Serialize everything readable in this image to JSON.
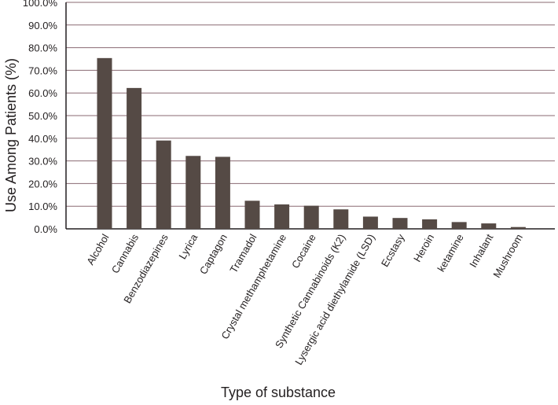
{
  "chart_data": {
    "type": "bar",
    "title": "",
    "xlabel": "Type of substance",
    "ylabel": "Use Among Patients (%)",
    "ylim": [
      0,
      100
    ],
    "yticks": [
      "0.0%",
      "10.0%",
      "20.0%",
      "30.0%",
      "40.0%",
      "50.0%",
      "60.0%",
      "70.0%",
      "80.0%",
      "90.0%",
      "100.0%"
    ],
    "grid": true,
    "colors": {
      "bar": "#554a45",
      "grid": "#8a6a72",
      "axis": "#231f20"
    },
    "categories": [
      "Alcohol",
      "Cannabis",
      "Benzodiazepines",
      "Lyrica",
      "Captagon",
      "Tramadol",
      "Crystal methamphetamine",
      "Cocaine",
      "Synthetic Cannabinoids (K2)",
      "Lysergic acid diethylamide (LSD)",
      "Ecstasy",
      "Heroin",
      "ketamine",
      "Inhalant",
      "Mushroom"
    ],
    "values": [
      75.4,
      62.2,
      39.0,
      32.2,
      31.8,
      12.4,
      10.8,
      10.2,
      8.6,
      5.4,
      4.8,
      4.2,
      3.0,
      2.4,
      0.8
    ]
  }
}
